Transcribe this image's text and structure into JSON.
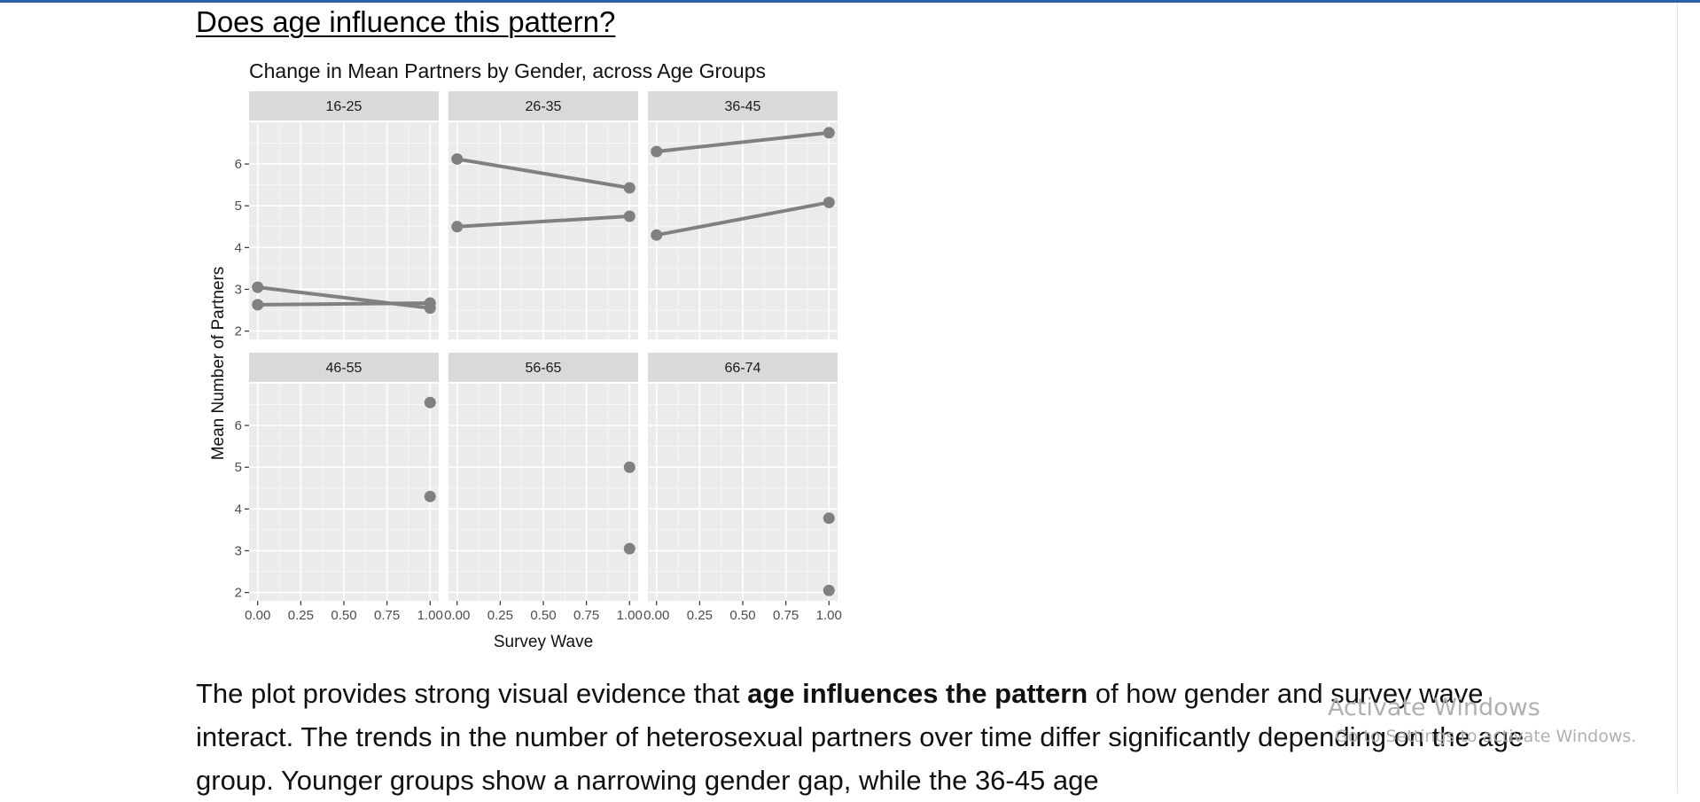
{
  "page": {
    "heading": "Does age influence this pattern?",
    "paragraph": {
      "part1": "The plot provides strong visual evidence that ",
      "bold": "age influences the pattern",
      "part2": " of how gender and survey wave interact. The trends in the number of heterosexual partners over time differ significantly depending on the age group. Younger groups show a narrowing gender gap, while the 36-45 age"
    },
    "watermark": {
      "title": "Activate Windows",
      "subtitle": "Go to Settings to activate Windows."
    }
  },
  "colors": {
    "panel_bg": "#ebebeb",
    "strip_bg": "#d9d9d9",
    "grid": "#ffffff",
    "series": "#808080",
    "header_bar": "#2b5fa6"
  },
  "chart_data": {
    "type": "line",
    "title": "Change in Mean Partners by Gender, across Age Groups",
    "xlabel": "Survey Wave",
    "ylabel": "Mean Number of Partners",
    "xlim": [
      -0.05,
      1.05
    ],
    "ylim": [
      1.8,
      7.0
    ],
    "x_ticks": [
      "0.00",
      "0.25",
      "0.50",
      "0.75",
      "1.00"
    ],
    "y_ticks": [
      "2",
      "3",
      "4",
      "5",
      "6"
    ],
    "x_tick_values": [
      0,
      0.25,
      0.5,
      0.75,
      1
    ],
    "y_tick_values": [
      2,
      3,
      4,
      5,
      6
    ],
    "grid": true,
    "panels": [
      {
        "label": "16-25",
        "series": [
          {
            "x": [
              0,
              1
            ],
            "y": [
              3.05,
              2.55
            ]
          },
          {
            "x": [
              0,
              1
            ],
            "y": [
              2.63,
              2.67
            ]
          }
        ]
      },
      {
        "label": "26-35",
        "series": [
          {
            "x": [
              0,
              1
            ],
            "y": [
              6.12,
              5.43
            ]
          },
          {
            "x": [
              0,
              1
            ],
            "y": [
              4.5,
              4.75
            ]
          }
        ]
      },
      {
        "label": "36-45",
        "series": [
          {
            "x": [
              0,
              1
            ],
            "y": [
              6.3,
              6.75
            ]
          },
          {
            "x": [
              0,
              1
            ],
            "y": [
              4.3,
              5.08
            ]
          }
        ]
      },
      {
        "label": "46-55",
        "series": [
          {
            "x": [
              1
            ],
            "y": [
              6.55
            ]
          },
          {
            "x": [
              1
            ],
            "y": [
              4.3
            ]
          }
        ]
      },
      {
        "label": "56-65",
        "series": [
          {
            "x": [
              1
            ],
            "y": [
              5.0
            ]
          },
          {
            "x": [
              1
            ],
            "y": [
              3.05
            ]
          }
        ]
      },
      {
        "label": "66-74",
        "series": [
          {
            "x": [
              1
            ],
            "y": [
              3.78
            ]
          },
          {
            "x": [
              1
            ],
            "y": [
              2.05
            ]
          }
        ]
      }
    ]
  }
}
